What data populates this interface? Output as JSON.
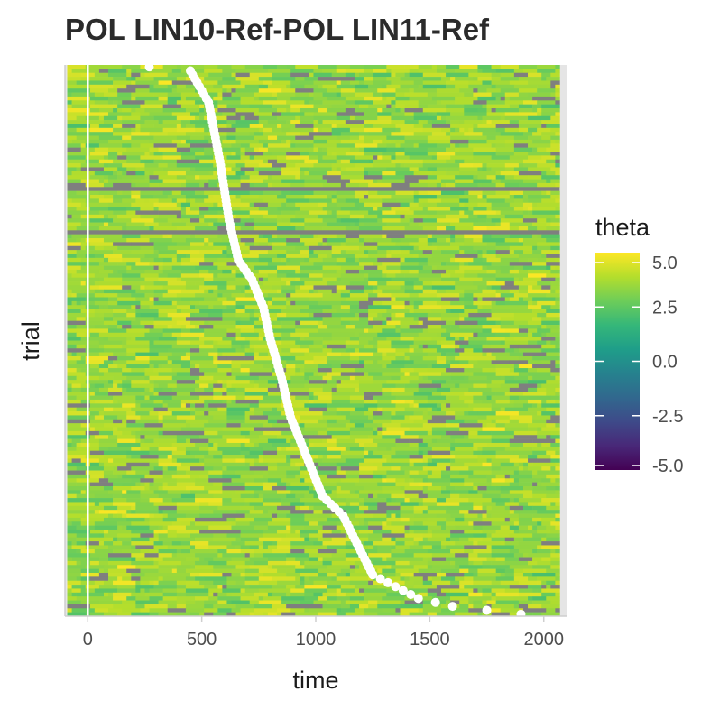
{
  "chart_data": {
    "type": "heatmap",
    "title": "POL LIN10-Ref-POL LIN11-Ref",
    "xlabel": "time",
    "ylabel": "trial",
    "xlim": [
      -100,
      2100
    ],
    "x_ticks": [
      0,
      500,
      1000,
      1500,
      2000
    ],
    "x_tick_labels": [
      "0",
      "500",
      "1000",
      "1500",
      "2000"
    ],
    "y_ticks_shown": false,
    "heatmap_x_range": [
      -90,
      2070
    ],
    "n_trials": 140,
    "time_bin_ms": 20,
    "fill_variable": "theta",
    "colorscale": "viridis",
    "color_range": [
      -5.0,
      5.0
    ],
    "colorbar_ticks": [
      5.0,
      2.5,
      0.0,
      -2.5,
      -5.0
    ],
    "colorbar_tick_labels": [
      "5.0",
      "2.5",
      "0.0",
      "-2.5",
      "-5.0"
    ],
    "value_distribution": {
      "typical_range": [
        2.0,
        5.0
      ],
      "mode": 3.5,
      "note_na_cells": "scattered cells with no value drawn in grey"
    },
    "na_color": "#7f7f7f",
    "full_row_na_trials": [
      32,
      43
    ],
    "vertical_reference_line": {
      "x": 0,
      "color": "#ffffff"
    },
    "response_times": {
      "color": "#ffffff",
      "sorted_descending_by_trial_from_top": true,
      "keypoints": [
        {
          "trial_from_top": 1,
          "time": 270,
          "outlier": true
        },
        {
          "trial_from_top": 2,
          "time": 450
        },
        {
          "trial_from_top": 10,
          "time": 530
        },
        {
          "trial_from_top": 25,
          "time": 580
        },
        {
          "trial_from_top": 40,
          "time": 620
        },
        {
          "trial_from_top": 50,
          "time": 660
        },
        {
          "trial_from_top": 55,
          "time": 720
        },
        {
          "trial_from_top": 62,
          "time": 770
        },
        {
          "trial_from_top": 70,
          "time": 800
        },
        {
          "trial_from_top": 80,
          "time": 850
        },
        {
          "trial_from_top": 90,
          "time": 890
        },
        {
          "trial_from_top": 100,
          "time": 960
        },
        {
          "trial_from_top": 110,
          "time": 1030
        },
        {
          "trial_from_top": 115,
          "time": 1120
        },
        {
          "trial_from_top": 122,
          "time": 1180
        },
        {
          "trial_from_top": 130,
          "time": 1250
        },
        {
          "trial_from_top": 133,
          "time": 1350
        },
        {
          "trial_from_top": 136,
          "time": 1450
        },
        {
          "trial_from_top": 138,
          "time": 1600
        },
        {
          "trial_from_top": 139,
          "time": 1750
        },
        {
          "trial_from_top": 140,
          "time": 1900
        }
      ]
    },
    "grid": false,
    "legend_position": "right"
  }
}
